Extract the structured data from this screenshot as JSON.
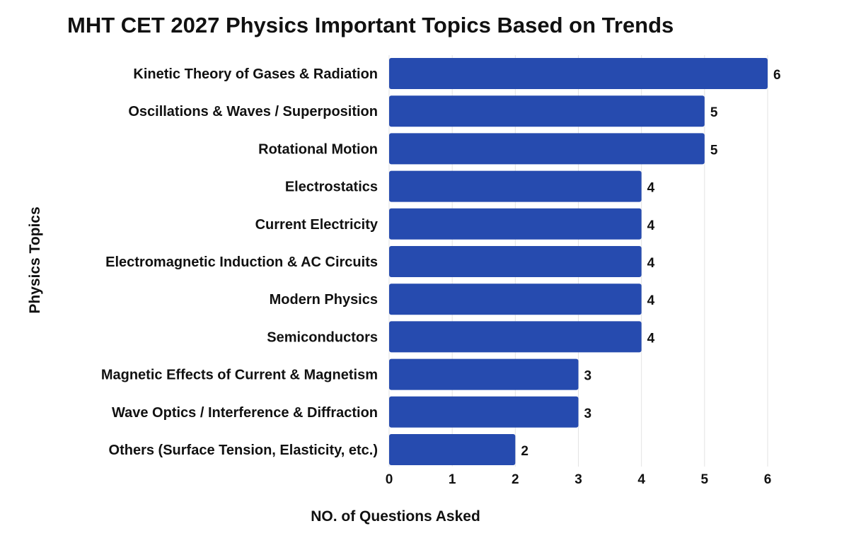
{
  "chart_data": {
    "type": "bar",
    "orientation": "horizontal",
    "title": "MHT CET 2027 Physics Important Topics Based on Trends",
    "xlabel": "NO. of Questions Asked",
    "ylabel": "Physics Topics",
    "categories": [
      "Kinetic Theory of Gases & Radiation",
      "Oscillations & Waves / Superposition",
      "Rotational Motion",
      "Electrostatics",
      "Current Electricity",
      "Electromagnetic Induction & AC Circuits",
      "Modern Physics",
      "Semiconductors",
      "Magnetic Effects of Current & Magnetism",
      "Wave Optics / Interference & Diffraction",
      "Others (Surface Tension, Elasticity, etc.)"
    ],
    "values": [
      6,
      5,
      5,
      4,
      4,
      4,
      4,
      4,
      3,
      3,
      2
    ],
    "xlim": [
      0,
      6
    ],
    "xticks": [
      "0",
      "1",
      "2",
      "3",
      "4",
      "5",
      "6"
    ],
    "grid": true,
    "data_labels": true,
    "bar_color": "#264BAF",
    "grid_color": "#E3E3E3"
  }
}
